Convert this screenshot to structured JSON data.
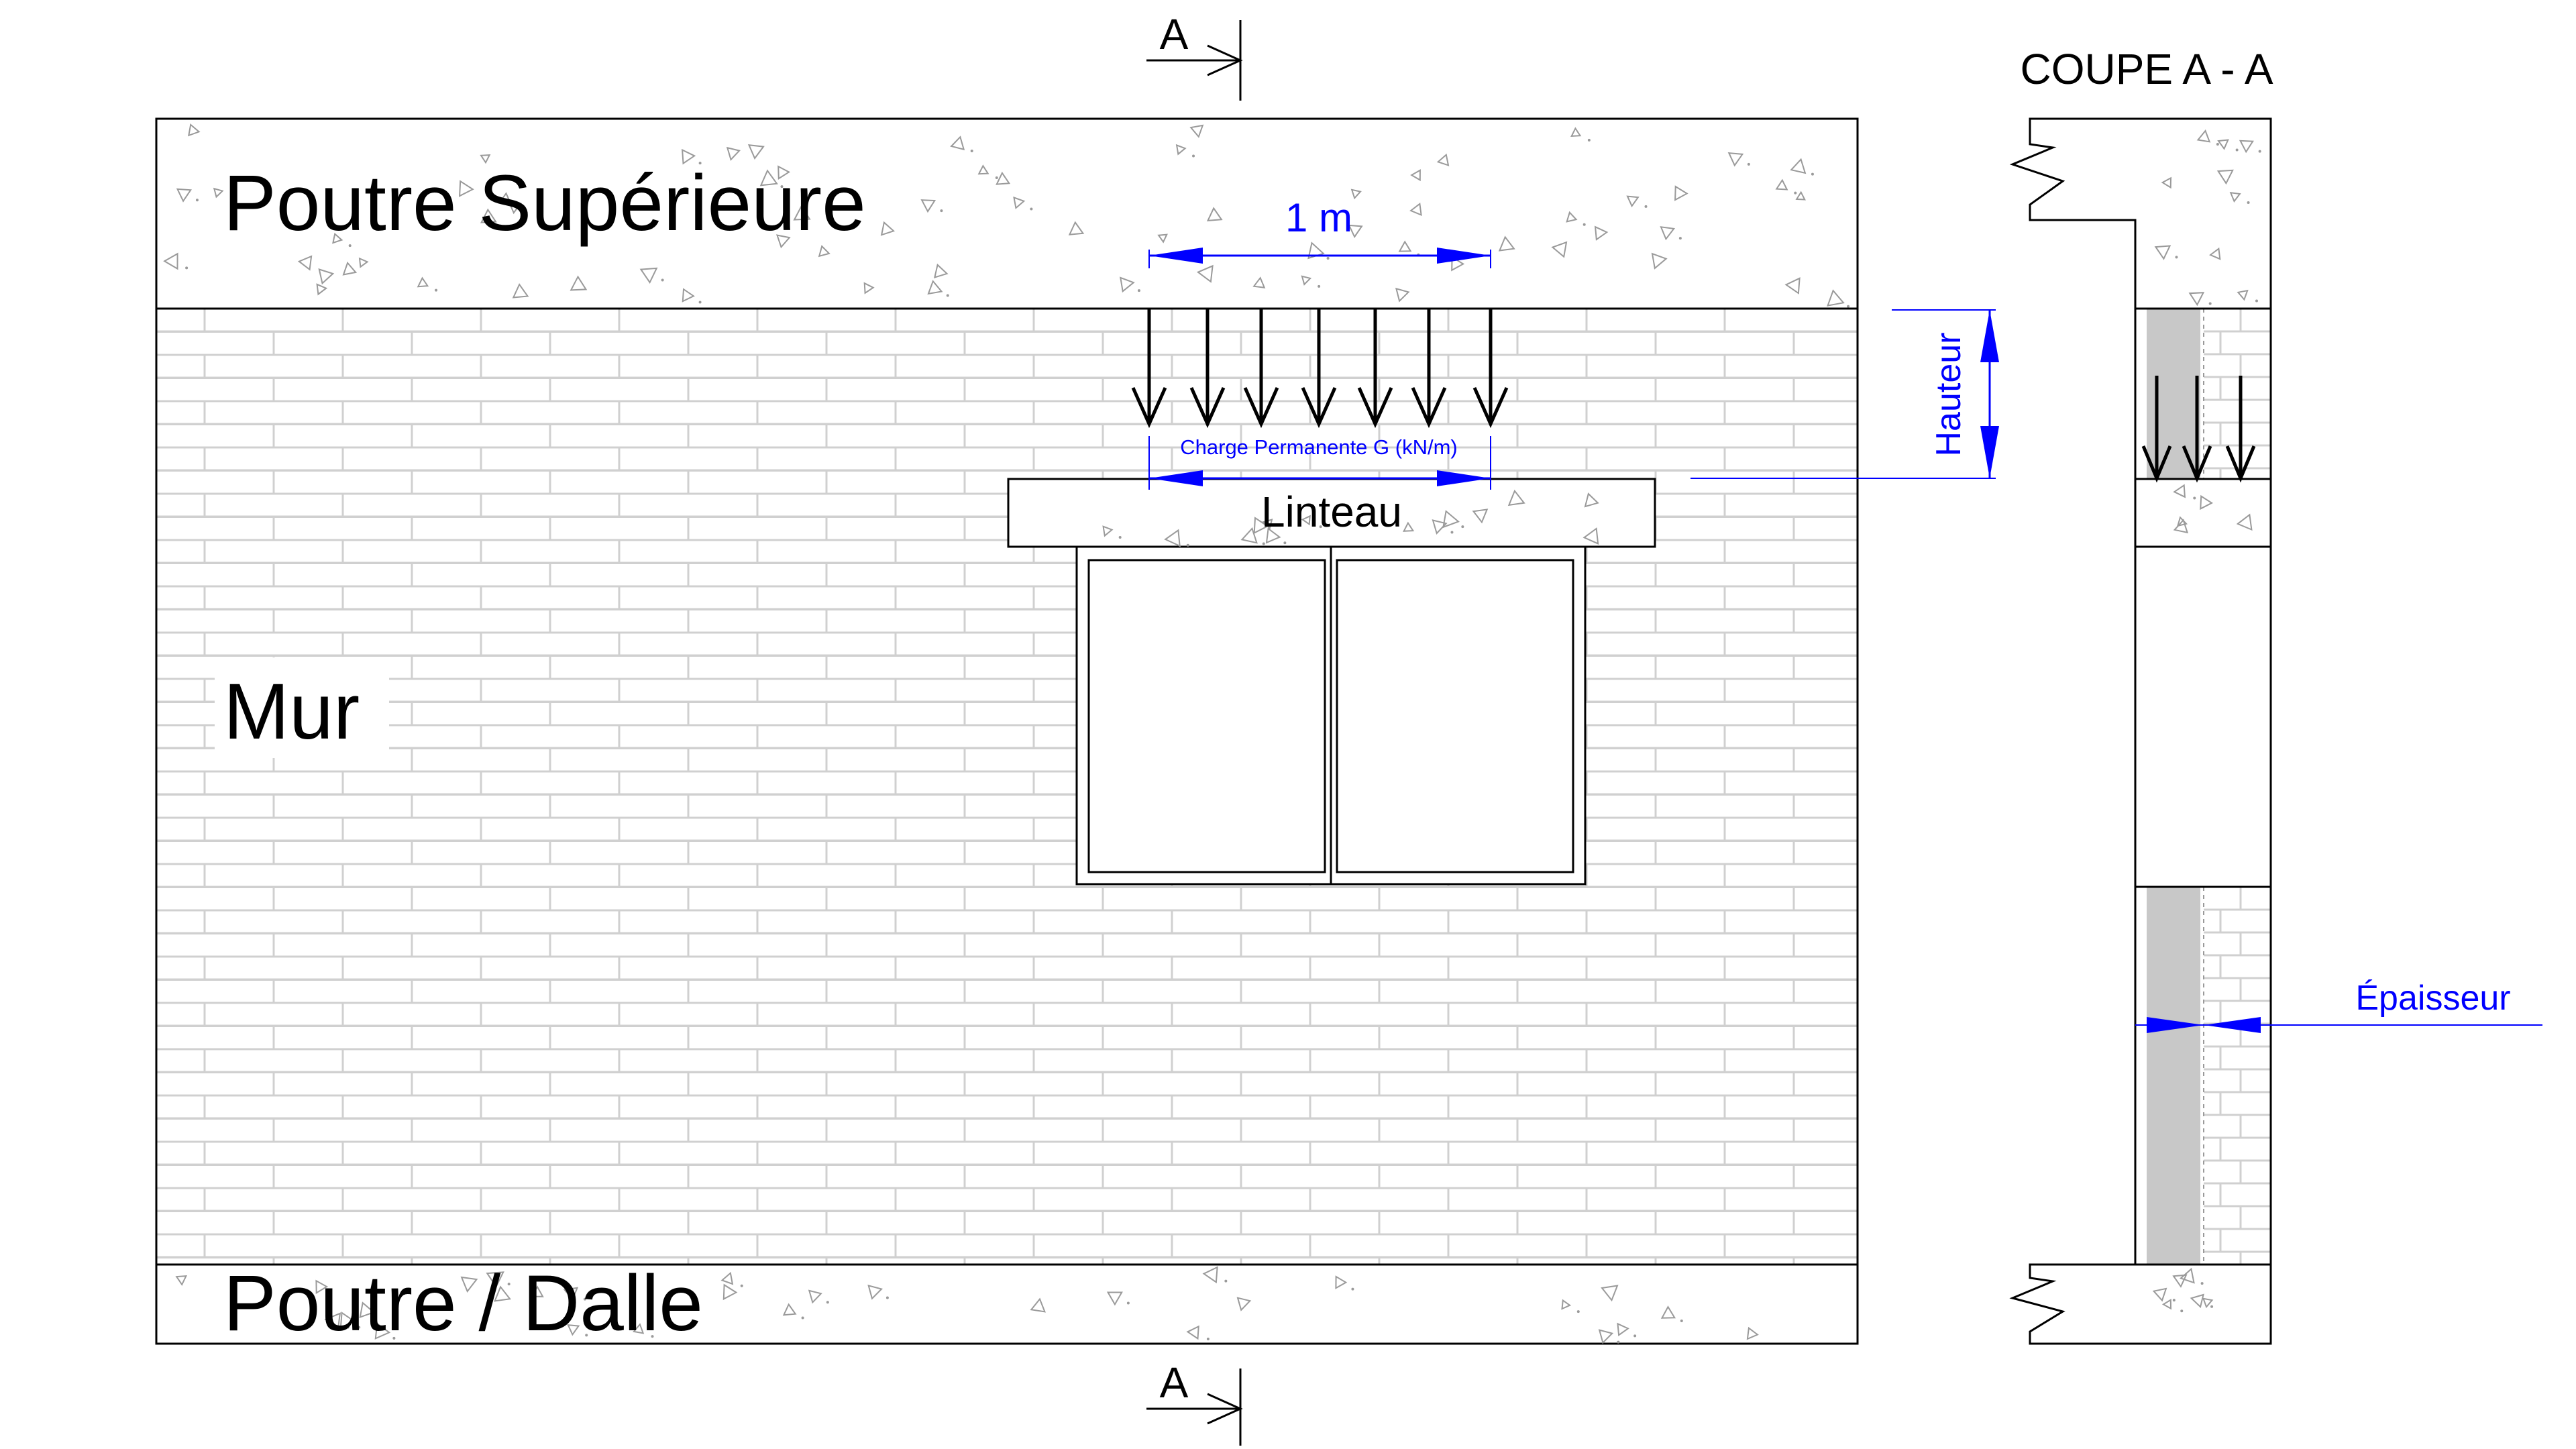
{
  "section_markers": {
    "letter": "A"
  },
  "section_title": "COUPE A - A",
  "labels": {
    "top_beam": "Poutre Supérieure",
    "wall": "Mur",
    "bottom_beam": "Poutre / Dalle",
    "lintel": "Linteau"
  },
  "dimensions": {
    "width": "1 m",
    "load": "Charge Permanente G (kN/m)",
    "height": "Hauteur",
    "thickness": "Épaisseur"
  },
  "colors": {
    "dimension": "#0000ff",
    "outline": "#000000",
    "brick_joint": "#d0d0d0",
    "wall_section_fill": "#c8c8c8",
    "concrete_speckle": "#9a9a9a"
  }
}
